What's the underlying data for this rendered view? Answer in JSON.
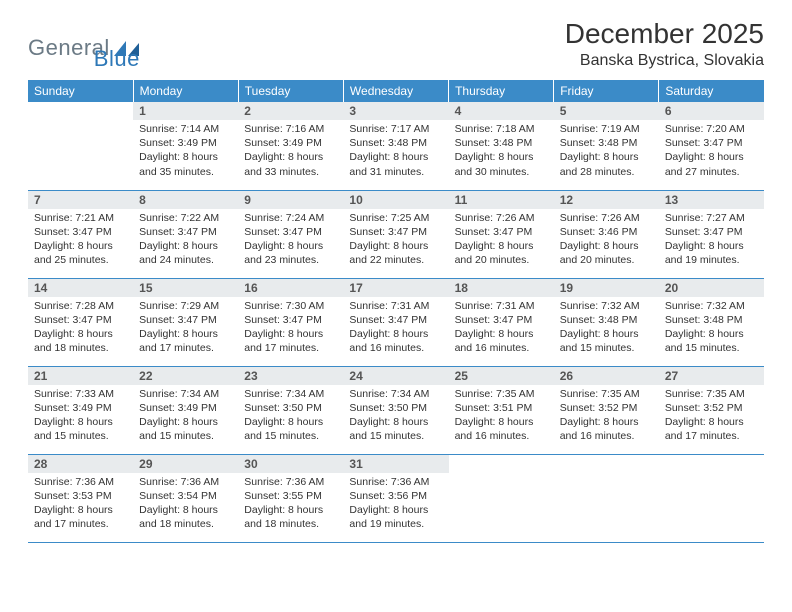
{
  "logo": {
    "text1": "General",
    "text2": "Blue"
  },
  "title": "December 2025",
  "location": "Banska Bystrica, Slovakia",
  "colors": {
    "header_bg": "#3b8bc8",
    "header_text": "#ffffff",
    "daynum_bg": "#e8ebed",
    "daynum_text": "#555555",
    "body_text": "#333333",
    "row_border": "#3b8bc8",
    "logo_gray": "#6b7a85",
    "logo_blue": "#2e78b7"
  },
  "columns": [
    "Sunday",
    "Monday",
    "Tuesday",
    "Wednesday",
    "Thursday",
    "Friday",
    "Saturday"
  ],
  "weeks": [
    [
      {
        "n": "",
        "sr": "",
        "ss": "",
        "dl": ""
      },
      {
        "n": "1",
        "sr": "Sunrise: 7:14 AM",
        "ss": "Sunset: 3:49 PM",
        "dl": "Daylight: 8 hours and 35 minutes."
      },
      {
        "n": "2",
        "sr": "Sunrise: 7:16 AM",
        "ss": "Sunset: 3:49 PM",
        "dl": "Daylight: 8 hours and 33 minutes."
      },
      {
        "n": "3",
        "sr": "Sunrise: 7:17 AM",
        "ss": "Sunset: 3:48 PM",
        "dl": "Daylight: 8 hours and 31 minutes."
      },
      {
        "n": "4",
        "sr": "Sunrise: 7:18 AM",
        "ss": "Sunset: 3:48 PM",
        "dl": "Daylight: 8 hours and 30 minutes."
      },
      {
        "n": "5",
        "sr": "Sunrise: 7:19 AM",
        "ss": "Sunset: 3:48 PM",
        "dl": "Daylight: 8 hours and 28 minutes."
      },
      {
        "n": "6",
        "sr": "Sunrise: 7:20 AM",
        "ss": "Sunset: 3:47 PM",
        "dl": "Daylight: 8 hours and 27 minutes."
      }
    ],
    [
      {
        "n": "7",
        "sr": "Sunrise: 7:21 AM",
        "ss": "Sunset: 3:47 PM",
        "dl": "Daylight: 8 hours and 25 minutes."
      },
      {
        "n": "8",
        "sr": "Sunrise: 7:22 AM",
        "ss": "Sunset: 3:47 PM",
        "dl": "Daylight: 8 hours and 24 minutes."
      },
      {
        "n": "9",
        "sr": "Sunrise: 7:24 AM",
        "ss": "Sunset: 3:47 PM",
        "dl": "Daylight: 8 hours and 23 minutes."
      },
      {
        "n": "10",
        "sr": "Sunrise: 7:25 AM",
        "ss": "Sunset: 3:47 PM",
        "dl": "Daylight: 8 hours and 22 minutes."
      },
      {
        "n": "11",
        "sr": "Sunrise: 7:26 AM",
        "ss": "Sunset: 3:47 PM",
        "dl": "Daylight: 8 hours and 20 minutes."
      },
      {
        "n": "12",
        "sr": "Sunrise: 7:26 AM",
        "ss": "Sunset: 3:46 PM",
        "dl": "Daylight: 8 hours and 20 minutes."
      },
      {
        "n": "13",
        "sr": "Sunrise: 7:27 AM",
        "ss": "Sunset: 3:47 PM",
        "dl": "Daylight: 8 hours and 19 minutes."
      }
    ],
    [
      {
        "n": "14",
        "sr": "Sunrise: 7:28 AM",
        "ss": "Sunset: 3:47 PM",
        "dl": "Daylight: 8 hours and 18 minutes."
      },
      {
        "n": "15",
        "sr": "Sunrise: 7:29 AM",
        "ss": "Sunset: 3:47 PM",
        "dl": "Daylight: 8 hours and 17 minutes."
      },
      {
        "n": "16",
        "sr": "Sunrise: 7:30 AM",
        "ss": "Sunset: 3:47 PM",
        "dl": "Daylight: 8 hours and 17 minutes."
      },
      {
        "n": "17",
        "sr": "Sunrise: 7:31 AM",
        "ss": "Sunset: 3:47 PM",
        "dl": "Daylight: 8 hours and 16 minutes."
      },
      {
        "n": "18",
        "sr": "Sunrise: 7:31 AM",
        "ss": "Sunset: 3:47 PM",
        "dl": "Daylight: 8 hours and 16 minutes."
      },
      {
        "n": "19",
        "sr": "Sunrise: 7:32 AM",
        "ss": "Sunset: 3:48 PM",
        "dl": "Daylight: 8 hours and 15 minutes."
      },
      {
        "n": "20",
        "sr": "Sunrise: 7:32 AM",
        "ss": "Sunset: 3:48 PM",
        "dl": "Daylight: 8 hours and 15 minutes."
      }
    ],
    [
      {
        "n": "21",
        "sr": "Sunrise: 7:33 AM",
        "ss": "Sunset: 3:49 PM",
        "dl": "Daylight: 8 hours and 15 minutes."
      },
      {
        "n": "22",
        "sr": "Sunrise: 7:34 AM",
        "ss": "Sunset: 3:49 PM",
        "dl": "Daylight: 8 hours and 15 minutes."
      },
      {
        "n": "23",
        "sr": "Sunrise: 7:34 AM",
        "ss": "Sunset: 3:50 PM",
        "dl": "Daylight: 8 hours and 15 minutes."
      },
      {
        "n": "24",
        "sr": "Sunrise: 7:34 AM",
        "ss": "Sunset: 3:50 PM",
        "dl": "Daylight: 8 hours and 15 minutes."
      },
      {
        "n": "25",
        "sr": "Sunrise: 7:35 AM",
        "ss": "Sunset: 3:51 PM",
        "dl": "Daylight: 8 hours and 16 minutes."
      },
      {
        "n": "26",
        "sr": "Sunrise: 7:35 AM",
        "ss": "Sunset: 3:52 PM",
        "dl": "Daylight: 8 hours and 16 minutes."
      },
      {
        "n": "27",
        "sr": "Sunrise: 7:35 AM",
        "ss": "Sunset: 3:52 PM",
        "dl": "Daylight: 8 hours and 17 minutes."
      }
    ],
    [
      {
        "n": "28",
        "sr": "Sunrise: 7:36 AM",
        "ss": "Sunset: 3:53 PM",
        "dl": "Daylight: 8 hours and 17 minutes."
      },
      {
        "n": "29",
        "sr": "Sunrise: 7:36 AM",
        "ss": "Sunset: 3:54 PM",
        "dl": "Daylight: 8 hours and 18 minutes."
      },
      {
        "n": "30",
        "sr": "Sunrise: 7:36 AM",
        "ss": "Sunset: 3:55 PM",
        "dl": "Daylight: 8 hours and 18 minutes."
      },
      {
        "n": "31",
        "sr": "Sunrise: 7:36 AM",
        "ss": "Sunset: 3:56 PM",
        "dl": "Daylight: 8 hours and 19 minutes."
      },
      {
        "n": "",
        "sr": "",
        "ss": "",
        "dl": ""
      },
      {
        "n": "",
        "sr": "",
        "ss": "",
        "dl": ""
      },
      {
        "n": "",
        "sr": "",
        "ss": "",
        "dl": ""
      }
    ]
  ]
}
